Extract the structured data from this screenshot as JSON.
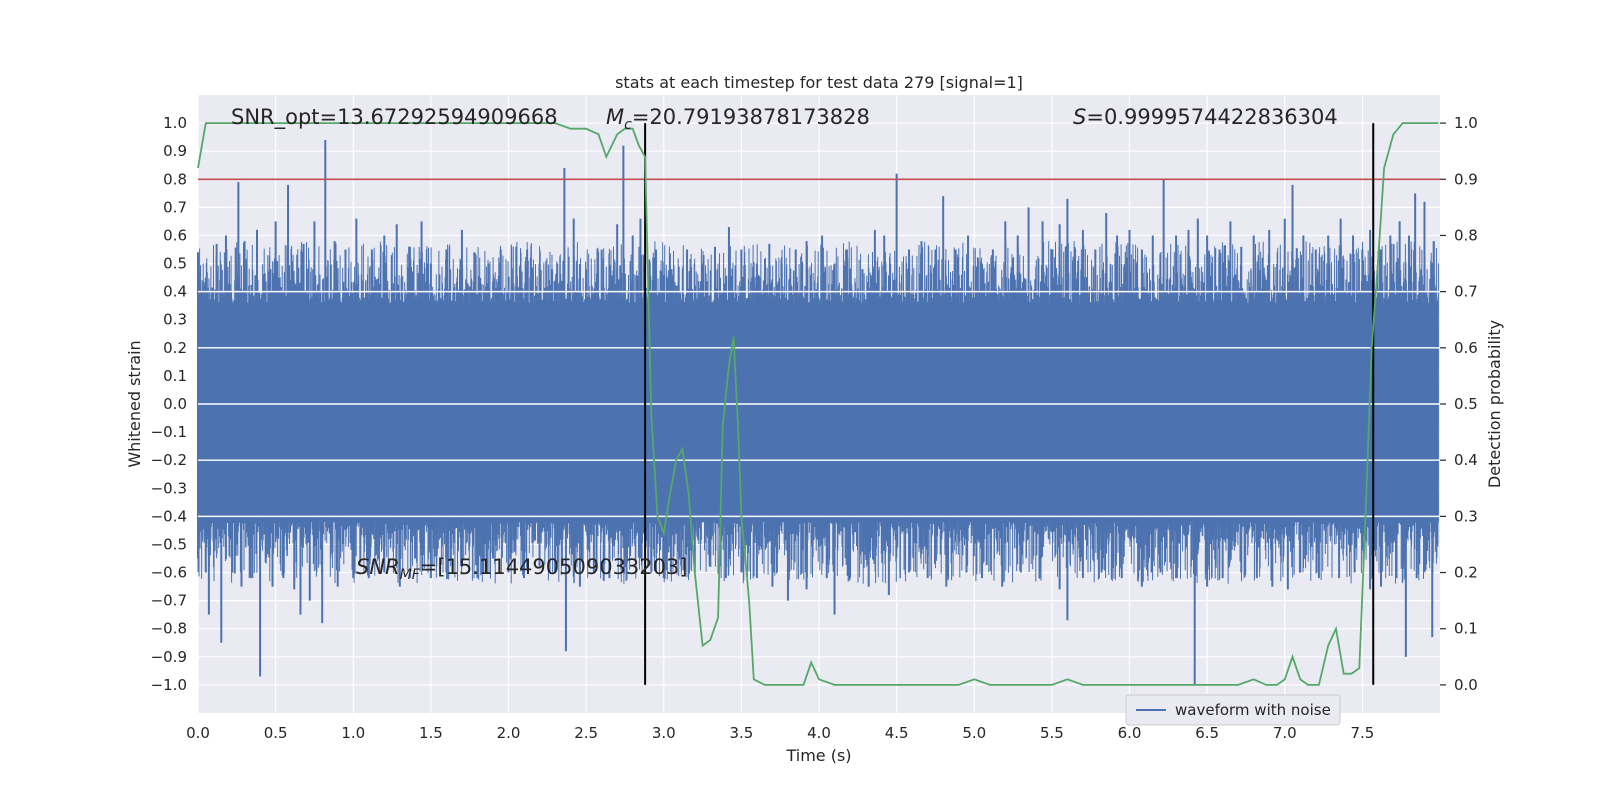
{
  "chart_data": {
    "type": "line",
    "title": "stats at each timestep for test data 279 [signal=1]",
    "xlabel": "Time (s)",
    "ylabel": "Whitened strain",
    "y2label": "Detection probability",
    "xlim": [
      0.0,
      8.0
    ],
    "ylim": [
      -1.1,
      1.1
    ],
    "y2lim": [
      -0.05,
      1.05
    ],
    "xticks": [
      0.0,
      0.5,
      1.0,
      1.5,
      2.0,
      2.5,
      3.0,
      3.5,
      4.0,
      4.5,
      5.0,
      5.5,
      6.0,
      6.5,
      7.0,
      7.5
    ],
    "xtick_labels": [
      "0.0",
      "0.5",
      "1.0",
      "1.5",
      "2.0",
      "2.5",
      "3.0",
      "3.5",
      "4.0",
      "4.5",
      "5.0",
      "5.5",
      "6.0",
      "6.5",
      "7.0",
      "7.5"
    ],
    "yticks": [
      1.0,
      0.9,
      0.8,
      0.7,
      0.6,
      0.5,
      0.4,
      0.3,
      0.2,
      0.1,
      0.0,
      -0.1,
      -0.2,
      -0.3,
      -0.4,
      -0.5,
      -0.6,
      -0.7,
      -0.8,
      -0.9,
      -1.0
    ],
    "ytick_labels": [
      "1.0",
      "0.9",
      "0.8",
      "0.7",
      "0.6",
      "0.5",
      "0.4",
      "0.3",
      "0.2",
      "0.1",
      "0.0",
      "−0.1",
      "−0.2",
      "−0.3",
      "−0.4",
      "−0.5",
      "−0.6",
      "−0.7",
      "−0.8",
      "−0.9",
      "−1.0"
    ],
    "y2ticks": [
      1.0,
      0.9,
      0.8,
      0.7,
      0.6,
      0.5,
      0.4,
      0.3,
      0.2,
      0.1,
      0.0
    ],
    "y2tick_labels": [
      "1.0",
      "0.9",
      "0.8",
      "0.7",
      "0.6",
      "0.5",
      "0.4",
      "0.3",
      "0.2",
      "0.1",
      "0.0"
    ],
    "legend": {
      "placement": "lower-right",
      "entries": [
        "waveform with noise"
      ]
    },
    "threshold_probability": 0.9,
    "vlines_time": [
      2.88,
      7.57
    ],
    "waveform": {
      "name": "waveform with noise",
      "color": "#4c72b0",
      "t_start": 0.0,
      "t_end": 7.99,
      "upper_band": 0.36,
      "lower_band": -0.42,
      "upper_peaks": [
        [
          0.0,
          0.54
        ],
        [
          0.05,
          0.45
        ],
        [
          0.12,
          0.57
        ],
        [
          0.18,
          0.6
        ],
        [
          0.26,
          0.79
        ],
        [
          0.3,
          0.58
        ],
        [
          0.38,
          0.62
        ],
        [
          0.5,
          0.65
        ],
        [
          0.58,
          0.78
        ],
        [
          0.68,
          0.57
        ],
        [
          0.75,
          0.65
        ],
        [
          0.82,
          0.94
        ],
        [
          0.88,
          0.58
        ],
        [
          0.95,
          0.55
        ],
        [
          1.02,
          0.66
        ],
        [
          1.12,
          0.55
        ],
        [
          1.2,
          0.6
        ],
        [
          1.28,
          0.64
        ],
        [
          1.36,
          0.56
        ],
        [
          1.44,
          0.65
        ],
        [
          1.5,
          0.5
        ],
        [
          1.6,
          0.55
        ],
        [
          1.7,
          0.62
        ],
        [
          1.78,
          0.54
        ],
        [
          1.87,
          0.5
        ],
        [
          1.95,
          0.55
        ],
        [
          2.05,
          0.56
        ],
        [
          2.12,
          0.55
        ],
        [
          2.2,
          0.5
        ],
        [
          2.28,
          0.48
        ],
        [
          2.36,
          0.84
        ],
        [
          2.42,
          0.66
        ],
        [
          2.5,
          0.48
        ],
        [
          2.6,
          0.55
        ],
        [
          2.7,
          0.64
        ],
        [
          2.74,
          0.92
        ],
        [
          2.8,
          0.6
        ],
        [
          2.85,
          0.66
        ],
        [
          2.95,
          0.55
        ],
        [
          3.05,
          0.48
        ],
        [
          3.15,
          0.55
        ],
        [
          3.25,
          0.5
        ],
        [
          3.33,
          0.56
        ],
        [
          3.42,
          0.63
        ],
        [
          3.5,
          0.55
        ],
        [
          3.6,
          0.5
        ],
        [
          3.68,
          0.57
        ],
        [
          3.76,
          0.5
        ],
        [
          3.85,
          0.55
        ],
        [
          3.92,
          0.58
        ],
        [
          4.02,
          0.6
        ],
        [
          4.1,
          0.5
        ],
        [
          4.18,
          0.55
        ],
        [
          4.28,
          0.48
        ],
        [
          4.36,
          0.62
        ],
        [
          4.42,
          0.6
        ],
        [
          4.5,
          0.82
        ],
        [
          4.58,
          0.55
        ],
        [
          4.66,
          0.58
        ],
        [
          4.75,
          0.55
        ],
        [
          4.8,
          0.74
        ],
        [
          4.88,
          0.55
        ],
        [
          4.96,
          0.6
        ],
        [
          5.05,
          0.5
        ],
        [
          5.12,
          0.55
        ],
        [
          5.2,
          0.65
        ],
        [
          5.28,
          0.6
        ],
        [
          5.35,
          0.7
        ],
        [
          5.44,
          0.65
        ],
        [
          5.5,
          0.55
        ],
        [
          5.55,
          0.64
        ],
        [
          5.6,
          0.73
        ],
        [
          5.7,
          0.62
        ],
        [
          5.78,
          0.55
        ],
        [
          5.85,
          0.68
        ],
        [
          5.92,
          0.6
        ],
        [
          6.0,
          0.62
        ],
        [
          6.08,
          0.55
        ],
        [
          6.15,
          0.6
        ],
        [
          6.22,
          0.8
        ],
        [
          6.3,
          0.6
        ],
        [
          6.38,
          0.62
        ],
        [
          6.44,
          0.66
        ],
        [
          6.5,
          0.6
        ],
        [
          6.58,
          0.55
        ],
        [
          6.65,
          0.65
        ],
        [
          6.72,
          0.56
        ],
        [
          6.8,
          0.6
        ],
        [
          6.9,
          0.62
        ],
        [
          7.0,
          0.66
        ],
        [
          7.05,
          0.78
        ],
        [
          7.12,
          0.6
        ],
        [
          7.2,
          0.55
        ],
        [
          7.28,
          0.6
        ],
        [
          7.36,
          0.66
        ],
        [
          7.44,
          0.6
        ],
        [
          7.5,
          0.55
        ],
        [
          7.55,
          0.62
        ],
        [
          7.62,
          0.55
        ],
        [
          7.68,
          0.6
        ],
        [
          7.74,
          0.65
        ],
        [
          7.8,
          0.6
        ],
        [
          7.84,
          0.75
        ],
        [
          7.9,
          0.72
        ],
        [
          7.96,
          0.58
        ]
      ],
      "lower_peaks": [
        [
          0.0,
          -0.55
        ],
        [
          0.05,
          -0.6
        ],
        [
          0.07,
          -0.75
        ],
        [
          0.15,
          -0.85
        ],
        [
          0.22,
          -0.6
        ],
        [
          0.28,
          -0.65
        ],
        [
          0.35,
          -0.62
        ],
        [
          0.4,
          -0.97
        ],
        [
          0.48,
          -0.65
        ],
        [
          0.55,
          -0.62
        ],
        [
          0.62,
          -0.66
        ],
        [
          0.66,
          -0.75
        ],
        [
          0.72,
          -0.7
        ],
        [
          0.8,
          -0.78
        ],
        [
          0.9,
          -0.65
        ],
        [
          1.0,
          -0.62
        ],
        [
          1.1,
          -0.62
        ],
        [
          1.2,
          -0.6
        ],
        [
          1.3,
          -0.65
        ],
        [
          1.4,
          -0.55
        ],
        [
          1.5,
          -0.62
        ],
        [
          1.6,
          -0.6
        ],
        [
          1.7,
          -0.58
        ],
        [
          1.8,
          -0.62
        ],
        [
          1.9,
          -0.55
        ],
        [
          2.0,
          -0.6
        ],
        [
          2.1,
          -0.62
        ],
        [
          2.2,
          -0.58
        ],
        [
          2.3,
          -0.6
        ],
        [
          2.37,
          -0.88
        ],
        [
          2.46,
          -0.65
        ],
        [
          2.55,
          -0.6
        ],
        [
          2.65,
          -0.62
        ],
        [
          2.75,
          -0.58
        ],
        [
          2.85,
          -0.55
        ],
        [
          2.92,
          -0.6
        ],
        [
          3.0,
          -0.62
        ],
        [
          3.1,
          -0.55
        ],
        [
          3.2,
          -0.6
        ],
        [
          3.3,
          -0.58
        ],
        [
          3.4,
          -0.62
        ],
        [
          3.5,
          -0.6
        ],
        [
          3.6,
          -0.62
        ],
        [
          3.7,
          -0.65
        ],
        [
          3.8,
          -0.7
        ],
        [
          3.92,
          -0.66
        ],
        [
          4.05,
          -0.62
        ],
        [
          4.1,
          -0.75
        ],
        [
          4.2,
          -0.62
        ],
        [
          4.32,
          -0.65
        ],
        [
          4.45,
          -0.68
        ],
        [
          4.58,
          -0.6
        ],
        [
          4.7,
          -0.62
        ],
        [
          4.82,
          -0.65
        ],
        [
          4.95,
          -0.6
        ],
        [
          5.05,
          -0.62
        ],
        [
          5.18,
          -0.65
        ],
        [
          5.3,
          -0.6
        ],
        [
          5.42,
          -0.62
        ],
        [
          5.55,
          -0.66
        ],
        [
          5.6,
          -0.77
        ],
        [
          5.7,
          -0.62
        ],
        [
          5.82,
          -0.6
        ],
        [
          5.95,
          -0.62
        ],
        [
          6.08,
          -0.65
        ],
        [
          6.2,
          -0.6
        ],
        [
          6.3,
          -0.62
        ],
        [
          6.42,
          -1.0
        ],
        [
          6.5,
          -0.65
        ],
        [
          6.6,
          -0.62
        ],
        [
          6.72,
          -0.6
        ],
        [
          6.82,
          -0.62
        ],
        [
          6.92,
          -0.65
        ],
        [
          7.02,
          -0.66
        ],
        [
          7.1,
          -0.6
        ],
        [
          7.22,
          -0.62
        ],
        [
          7.35,
          -0.62
        ],
        [
          7.45,
          -0.6
        ],
        [
          7.55,
          -0.66
        ],
        [
          7.62,
          -0.65
        ],
        [
          7.72,
          -0.62
        ],
        [
          7.78,
          -0.9
        ],
        [
          7.85,
          -0.62
        ],
        [
          7.95,
          -0.83
        ]
      ]
    },
    "probability": {
      "name": "Detection probability",
      "color": "#55a868",
      "points": [
        [
          0.0,
          0.92
        ],
        [
          0.05,
          1.0
        ],
        [
          0.5,
          1.0
        ],
        [
          1.0,
          1.0
        ],
        [
          1.5,
          1.0
        ],
        [
          2.0,
          1.0
        ],
        [
          2.3,
          1.0
        ],
        [
          2.4,
          0.99
        ],
        [
          2.5,
          0.99
        ],
        [
          2.58,
          0.98
        ],
        [
          2.63,
          0.94
        ],
        [
          2.7,
          0.98
        ],
        [
          2.75,
          0.99
        ],
        [
          2.8,
          0.99
        ],
        [
          2.84,
          0.96
        ],
        [
          2.88,
          0.94
        ],
        [
          2.92,
          0.48
        ],
        [
          2.96,
          0.3
        ],
        [
          3.0,
          0.27
        ],
        [
          3.04,
          0.34
        ],
        [
          3.08,
          0.4
        ],
        [
          3.12,
          0.42
        ],
        [
          3.16,
          0.34
        ],
        [
          3.2,
          0.2
        ],
        [
          3.25,
          0.07
        ],
        [
          3.3,
          0.08
        ],
        [
          3.35,
          0.12
        ],
        [
          3.38,
          0.46
        ],
        [
          3.42,
          0.57
        ],
        [
          3.45,
          0.62
        ],
        [
          3.48,
          0.45
        ],
        [
          3.5,
          0.3
        ],
        [
          3.55,
          0.15
        ],
        [
          3.58,
          0.01
        ],
        [
          3.65,
          0.0
        ],
        [
          3.75,
          0.0
        ],
        [
          3.85,
          0.0
        ],
        [
          3.9,
          0.0
        ],
        [
          3.95,
          0.04
        ],
        [
          4.0,
          0.01
        ],
        [
          4.1,
          0.0
        ],
        [
          4.2,
          0.0
        ],
        [
          4.3,
          0.0
        ],
        [
          4.4,
          0.0
        ],
        [
          4.5,
          0.0
        ],
        [
          4.6,
          0.0
        ],
        [
          4.7,
          0.0
        ],
        [
          4.8,
          0.0
        ],
        [
          4.9,
          0.0
        ],
        [
          5.0,
          0.01
        ],
        [
          5.1,
          0.0
        ],
        [
          5.2,
          0.0
        ],
        [
          5.3,
          0.0
        ],
        [
          5.4,
          0.0
        ],
        [
          5.5,
          0.0
        ],
        [
          5.6,
          0.01
        ],
        [
          5.7,
          0.0
        ],
        [
          5.8,
          0.0
        ],
        [
          5.9,
          0.0
        ],
        [
          6.0,
          0.0
        ],
        [
          6.1,
          0.0
        ],
        [
          6.2,
          0.0
        ],
        [
          6.3,
          0.0
        ],
        [
          6.4,
          0.0
        ],
        [
          6.5,
          0.0
        ],
        [
          6.6,
          0.0
        ],
        [
          6.7,
          0.0
        ],
        [
          6.8,
          0.01
        ],
        [
          6.88,
          0.0
        ],
        [
          6.95,
          0.0
        ],
        [
          7.0,
          0.01
        ],
        [
          7.05,
          0.05
        ],
        [
          7.1,
          0.01
        ],
        [
          7.15,
          0.0
        ],
        [
          7.22,
          0.0
        ],
        [
          7.28,
          0.07
        ],
        [
          7.33,
          0.1
        ],
        [
          7.38,
          0.02
        ],
        [
          7.43,
          0.02
        ],
        [
          7.48,
          0.03
        ],
        [
          7.52,
          0.3
        ],
        [
          7.56,
          0.6
        ],
        [
          7.6,
          0.75
        ],
        [
          7.64,
          0.92
        ],
        [
          7.7,
          0.98
        ],
        [
          7.76,
          1.0
        ],
        [
          7.85,
          1.0
        ],
        [
          7.99,
          1.0
        ]
      ]
    },
    "annotations": {
      "snr_opt": "SNR_opt=13.67292594909668",
      "mc_symbol": "M",
      "mc_sub": "c",
      "mc_value": "=20.79193878173828",
      "s_symbol": "S",
      "s_value": "=0.9999574422836304",
      "snr_mf_symbol": "SNR",
      "snr_mf_sub": "MF",
      "snr_mf_value": "=[15.114490509033203]"
    },
    "colors": {
      "background": "#eaeaf2",
      "grid": "#ffffff",
      "threshold": "#c44e52",
      "vline": "#000000"
    }
  }
}
